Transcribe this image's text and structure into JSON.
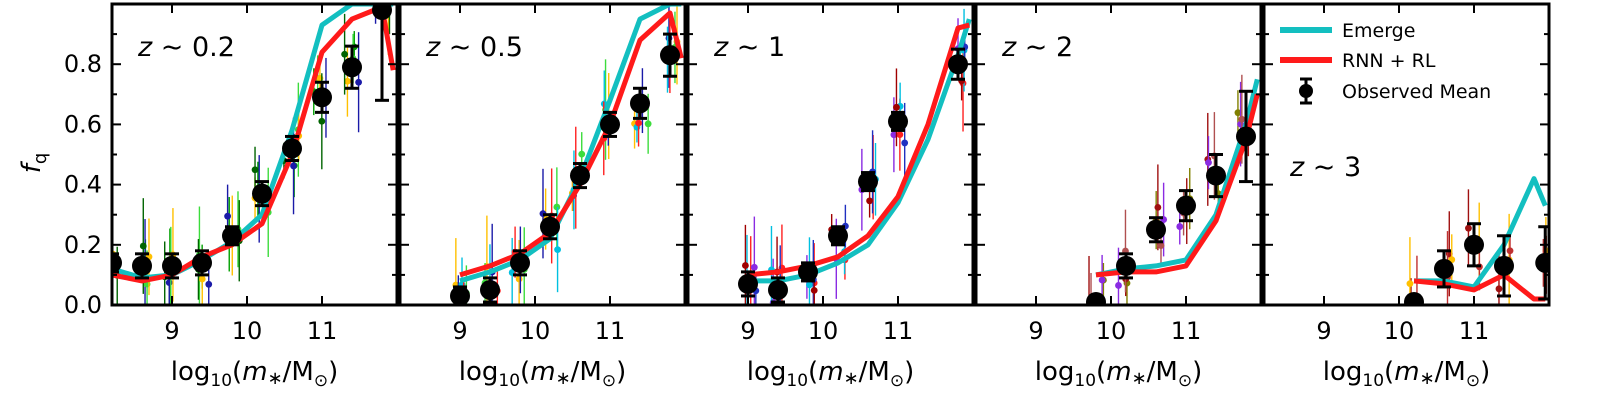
{
  "chart_data": {
    "type": "line",
    "ylabel": "f_q",
    "xlabel": "log10(m*/M⊙)",
    "xlim": [
      8.2,
      12.0
    ],
    "ylim": [
      0.0,
      1.0
    ],
    "yticks": [
      0.0,
      0.2,
      0.4,
      0.6,
      0.8
    ],
    "xticks": [
      9,
      10,
      11
    ],
    "legend": {
      "placement": "top-right of last panel",
      "entries": [
        {
          "label": "Emerge",
          "color": "#13bfc0",
          "kind": "line"
        },
        {
          "label": "RNN + RL",
          "color": "#ff1a1a",
          "kind": "line"
        },
        {
          "label": "Observed Mean",
          "color": "#000000",
          "kind": "errorbar"
        }
      ]
    },
    "colors": {
      "emerge": "#13bfc0",
      "rnn_rl": "#ff1a1a",
      "observed": "#000000"
    },
    "panels": [
      {
        "label": "z ∼ 0.2",
        "label_position": "top-left",
        "emerge": {
          "x": [
            8.2,
            8.6,
            9.0,
            9.4,
            9.8,
            10.2,
            10.6,
            11.0,
            11.4,
            11.8,
            11.95
          ],
          "y": [
            0.12,
            0.09,
            0.1,
            0.15,
            0.21,
            0.3,
            0.58,
            0.93,
            1.0,
            1.0,
            1.0
          ]
        },
        "rnn_rl": {
          "x": [
            8.2,
            8.6,
            9.0,
            9.4,
            9.8,
            10.2,
            10.6,
            11.0,
            11.4,
            11.8,
            11.95
          ],
          "y": [
            0.1,
            0.08,
            0.1,
            0.16,
            0.2,
            0.27,
            0.5,
            0.84,
            0.95,
            0.99,
            0.78
          ]
        },
        "observed": [
          {
            "x": 8.2,
            "y": 0.14,
            "err": 0.03
          },
          {
            "x": 8.6,
            "y": 0.13,
            "err": 0.04
          },
          {
            "x": 9.0,
            "y": 0.13,
            "err": 0.04
          },
          {
            "x": 9.4,
            "y": 0.14,
            "err": 0.04
          },
          {
            "x": 9.8,
            "y": 0.23,
            "err": 0.03
          },
          {
            "x": 10.2,
            "y": 0.37,
            "err": 0.04
          },
          {
            "x": 10.6,
            "y": 0.52,
            "err": 0.04
          },
          {
            "x": 11.0,
            "y": 0.69,
            "err": 0.05
          },
          {
            "x": 11.4,
            "y": 0.79,
            "err": 0.07
          },
          {
            "x": 11.8,
            "y": 0.98,
            "err": 0.3
          }
        ],
        "scatter_colors": [
          "#00a000",
          "#1a1aa8",
          "#3cdc3c",
          "#ffc000",
          "#006400"
        ]
      },
      {
        "label": "z ∼ 0.5",
        "label_position": "top-left",
        "emerge": {
          "x": [
            9.0,
            9.4,
            9.8,
            10.2,
            10.6,
            11.0,
            11.4,
            11.8,
            11.95
          ],
          "y": [
            0.08,
            0.11,
            0.15,
            0.22,
            0.42,
            0.68,
            0.95,
            1.0,
            1.0
          ]
        },
        "rnn_rl": {
          "x": [
            9.0,
            9.4,
            9.8,
            10.2,
            10.6,
            11.0,
            11.4,
            11.8,
            11.95
          ],
          "y": [
            0.1,
            0.13,
            0.17,
            0.24,
            0.4,
            0.6,
            0.88,
            0.97,
            0.82
          ]
        },
        "observed": [
          {
            "x": 9.0,
            "y": 0.03,
            "err": 0.03
          },
          {
            "x": 9.4,
            "y": 0.05,
            "err": 0.04
          },
          {
            "x": 9.8,
            "y": 0.14,
            "err": 0.04
          },
          {
            "x": 10.2,
            "y": 0.26,
            "err": 0.04
          },
          {
            "x": 10.6,
            "y": 0.43,
            "err": 0.04
          },
          {
            "x": 11.0,
            "y": 0.6,
            "err": 0.04
          },
          {
            "x": 11.4,
            "y": 0.67,
            "err": 0.05
          },
          {
            "x": 11.8,
            "y": 0.83,
            "err": 0.07
          }
        ],
        "scatter_colors": [
          "#ffc000",
          "#1a1aa8",
          "#3cdc3c",
          "#00c0e0",
          "#ff2020"
        ]
      },
      {
        "label": "z ∼ 1",
        "label_position": "top-left",
        "emerge": {
          "x": [
            9.0,
            9.4,
            9.8,
            10.2,
            10.6,
            11.0,
            11.4,
            11.8,
            11.95
          ],
          "y": [
            0.08,
            0.08,
            0.1,
            0.14,
            0.2,
            0.34,
            0.55,
            0.83,
            0.95
          ]
        },
        "rnn_rl": {
          "x": [
            9.0,
            9.4,
            9.8,
            10.2,
            10.6,
            11.0,
            11.4,
            11.8,
            11.95
          ],
          "y": [
            0.1,
            0.11,
            0.13,
            0.16,
            0.23,
            0.36,
            0.6,
            0.92,
            0.93
          ]
        },
        "observed": [
          {
            "x": 9.0,
            "y": 0.07,
            "err": 0.04
          },
          {
            "x": 9.4,
            "y": 0.05,
            "err": 0.04
          },
          {
            "x": 9.8,
            "y": 0.11,
            "err": 0.03
          },
          {
            "x": 10.2,
            "y": 0.23,
            "err": 0.03
          },
          {
            "x": 10.6,
            "y": 0.41,
            "err": 0.03
          },
          {
            "x": 11.0,
            "y": 0.61,
            "err": 0.03
          },
          {
            "x": 11.8,
            "y": 0.8,
            "err": 0.05
          }
        ],
        "scatter_colors": [
          "#ff2020",
          "#8a2be2",
          "#00c0e0",
          "#2030c0",
          "#a00000"
        ]
      },
      {
        "label": "z ∼ 2",
        "label_position": "top-left",
        "emerge": {
          "x": [
            9.8,
            10.2,
            10.6,
            11.0,
            11.4,
            11.8,
            11.95
          ],
          "y": [
            0.1,
            0.12,
            0.13,
            0.15,
            0.3,
            0.6,
            0.75
          ]
        },
        "rnn_rl": {
          "x": [
            9.8,
            10.2,
            10.6,
            11.0,
            11.4,
            11.8,
            11.95
          ],
          "y": [
            0.1,
            0.11,
            0.11,
            0.13,
            0.28,
            0.55,
            0.7
          ]
        },
        "observed": [
          {
            "x": 9.8,
            "y": 0.01,
            "err": 0.02
          },
          {
            "x": 10.2,
            "y": 0.13,
            "err": 0.04
          },
          {
            "x": 10.6,
            "y": 0.25,
            "err": 0.04
          },
          {
            "x": 11.0,
            "y": 0.33,
            "err": 0.05
          },
          {
            "x": 11.4,
            "y": 0.43,
            "err": 0.07
          },
          {
            "x": 11.8,
            "y": 0.56,
            "err": 0.15
          }
        ],
        "scatter_colors": [
          "#808000",
          "#a01010",
          "#8a2be2",
          "#b05050"
        ]
      },
      {
        "label": "z ∼ 3",
        "label_position": "middle-left",
        "emerge": {
          "x": [
            10.2,
            10.6,
            11.0,
            11.4,
            11.8,
            11.95
          ],
          "y": [
            0.08,
            0.08,
            0.06,
            0.2,
            0.42,
            0.33
          ]
        },
        "rnn_rl": {
          "x": [
            10.2,
            10.6,
            11.0,
            11.4,
            11.8,
            11.95
          ],
          "y": [
            0.08,
            0.07,
            0.05,
            0.1,
            0.02,
            0.02
          ]
        },
        "observed": [
          {
            "x": 10.2,
            "y": 0.01,
            "err": 0.02
          },
          {
            "x": 10.6,
            "y": 0.12,
            "err": 0.06
          },
          {
            "x": 11.0,
            "y": 0.2,
            "err": 0.07
          },
          {
            "x": 11.4,
            "y": 0.13,
            "err": 0.1
          },
          {
            "x": 11.95,
            "y": 0.14,
            "err": 0.12
          }
        ],
        "scatter_colors": [
          "#a01010",
          "#ffc000",
          "#c03030"
        ]
      }
    ]
  }
}
